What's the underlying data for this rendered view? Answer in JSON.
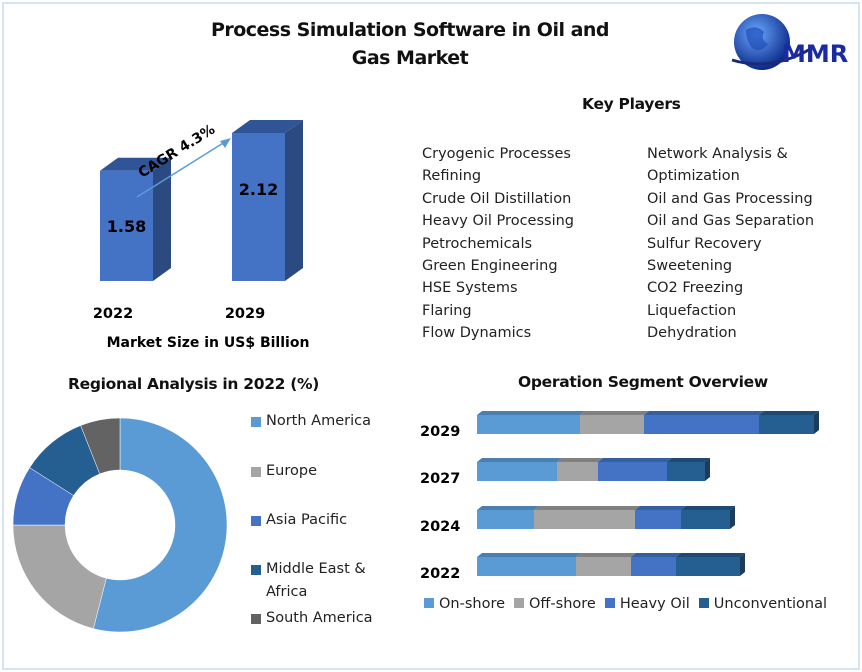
{
  "title": "Process Simulation Software in Oil and Gas Market",
  "logo_text": "MMR",
  "key_players": {
    "heading": "Key Players",
    "col1": [
      "Cryogenic Processes",
      "Refining",
      "Crude Oil Distillation",
      "Heavy Oil Processing",
      "Petrochemicals",
      "Green Engineering",
      "HSE Systems",
      "Flaring",
      "Flow Dynamics"
    ],
    "col2": [
      "Network Analysis &",
      "Optimization",
      "Oil and Gas Processing",
      "Oil and Gas Separation",
      "Sulfur Recovery",
      "Sweetening",
      "CO2 Freezing",
      "Liquefaction",
      "Dehydration"
    ]
  },
  "colors": {
    "onshore": "#5b9bd5",
    "offshore": "#a5a5a5",
    "heavy": "#4472c4",
    "unconv": "#255e91",
    "south": "#636363",
    "bar": "#4472c4"
  },
  "chart_data": [
    {
      "type": "bar",
      "title": "Market Size in US$ Billion",
      "categories": [
        "2022",
        "2029"
      ],
      "values": [
        1.58,
        2.12
      ],
      "value_labels": [
        "1.58",
        "2.12"
      ],
      "annotation": "CAGR 4.3%"
    },
    {
      "type": "pie",
      "title": "Regional Analysis in 2022 (%)",
      "labels": [
        "North America",
        "Europe",
        "Asia Pacific",
        "Middle East & Africa",
        "South America"
      ],
      "legend_lines": [
        [
          "North America"
        ],
        [
          "Europe"
        ],
        [
          "Asia Pacific"
        ],
        [
          "Middle East &",
          "Africa"
        ],
        [
          "South America"
        ]
      ],
      "values": [
        54,
        21,
        9,
        10,
        6
      ],
      "legend": "right"
    },
    {
      "type": "bar",
      "orientation": "horizontal",
      "stacked": true,
      "title": "Operation Segment Overview",
      "categories": [
        "2029",
        "2027",
        "2024",
        "2022"
      ],
      "series": [
        {
          "name": "On-shore",
          "values": [
            103,
            80,
            57,
            99
          ]
        },
        {
          "name": "Off-shore",
          "values": [
            64,
            41,
            101,
            55
          ]
        },
        {
          "name": "Heavy Oil",
          "values": [
            115,
            69,
            46,
            45
          ]
        },
        {
          "name": "Unconventional",
          "values": [
            55,
            38,
            49,
            64
          ]
        }
      ],
      "legend": "bottom"
    }
  ]
}
